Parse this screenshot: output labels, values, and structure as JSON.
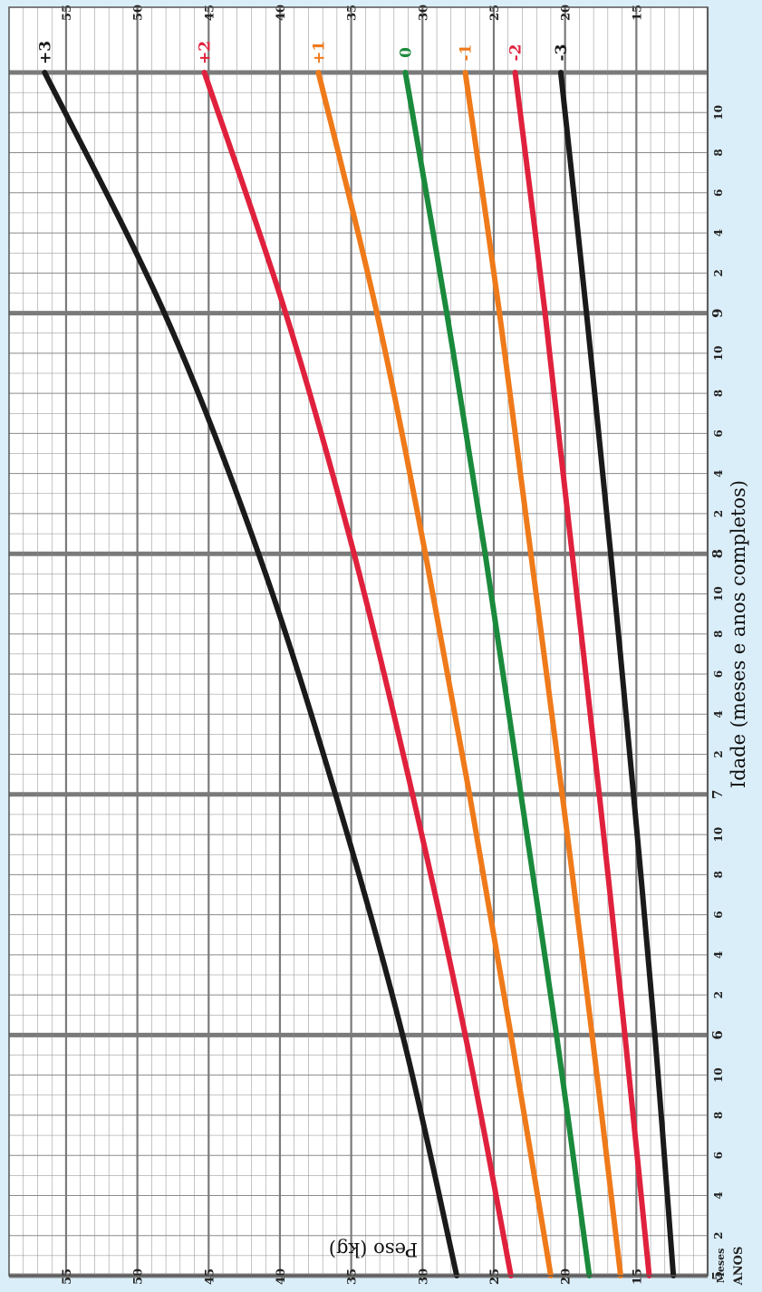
{
  "chart_data": {
    "type": "line",
    "orientation": "rotated-90",
    "xlabel": "Idade (meses e anos completos)",
    "ylabel": "Peso (kg)",
    "corner_labels": [
      "Meses",
      "ANOS"
    ],
    "xlim": [
      5,
      10
    ],
    "ylim": [
      10,
      59
    ],
    "grid": true,
    "year_ticks": [
      {
        "value": 5,
        "label": "5"
      },
      {
        "value": 6,
        "label": "6"
      },
      {
        "value": 7,
        "label": "7"
      },
      {
        "value": 8,
        "label": "8"
      },
      {
        "value": 9,
        "label": "9"
      }
    ],
    "month_ticks": [
      "2",
      "4",
      "6",
      "8",
      "10"
    ],
    "y_ticks": [
      {
        "value": 15,
        "label": "15"
      },
      {
        "value": 20,
        "label": "20"
      },
      {
        "value": 25,
        "label": "25"
      },
      {
        "value": 30,
        "label": "30"
      },
      {
        "value": 35,
        "label": "35"
      },
      {
        "value": 40,
        "label": "40"
      },
      {
        "value": 45,
        "label": "45"
      },
      {
        "value": 50,
        "label": "50"
      },
      {
        "value": 55,
        "label": "55"
      }
    ],
    "x": [
      5,
      6,
      7,
      8,
      9,
      10
    ],
    "series": [
      {
        "name": "-3",
        "color": "#1a1a1a",
        "values": [
          12.4,
          13.7,
          15.2,
          16.8,
          18.5,
          20.3
        ]
      },
      {
        "name": "-2",
        "color": "#e0213d",
        "values": [
          14.1,
          15.8,
          17.6,
          19.5,
          21.4,
          23.5
        ]
      },
      {
        "name": "-1",
        "color": "#ef7a1a",
        "values": [
          16.1,
          18.1,
          20.2,
          22.4,
          24.6,
          27.0
        ]
      },
      {
        "name": "0",
        "color": "#1a8a3c",
        "values": [
          18.3,
          20.6,
          23.1,
          25.6,
          28.3,
          31.2
        ]
      },
      {
        "name": "+1",
        "color": "#ef7a1a",
        "values": [
          21.0,
          23.8,
          26.7,
          29.8,
          33.2,
          37.3
        ]
      },
      {
        "name": "+2",
        "color": "#e0213d",
        "values": [
          23.8,
          27.0,
          30.7,
          34.8,
          39.6,
          45.3
        ]
      },
      {
        "name": "+3",
        "color": "#1a1a1a",
        "values": [
          27.6,
          31.4,
          36.1,
          41.5,
          48.1,
          56.5
        ]
      }
    ],
    "colors": {
      "grid_minor": "#8a8a8a",
      "grid_major": "#7a7a7a",
      "plot_bg": "#ffffff",
      "page_bg": "#daeef9"
    }
  }
}
